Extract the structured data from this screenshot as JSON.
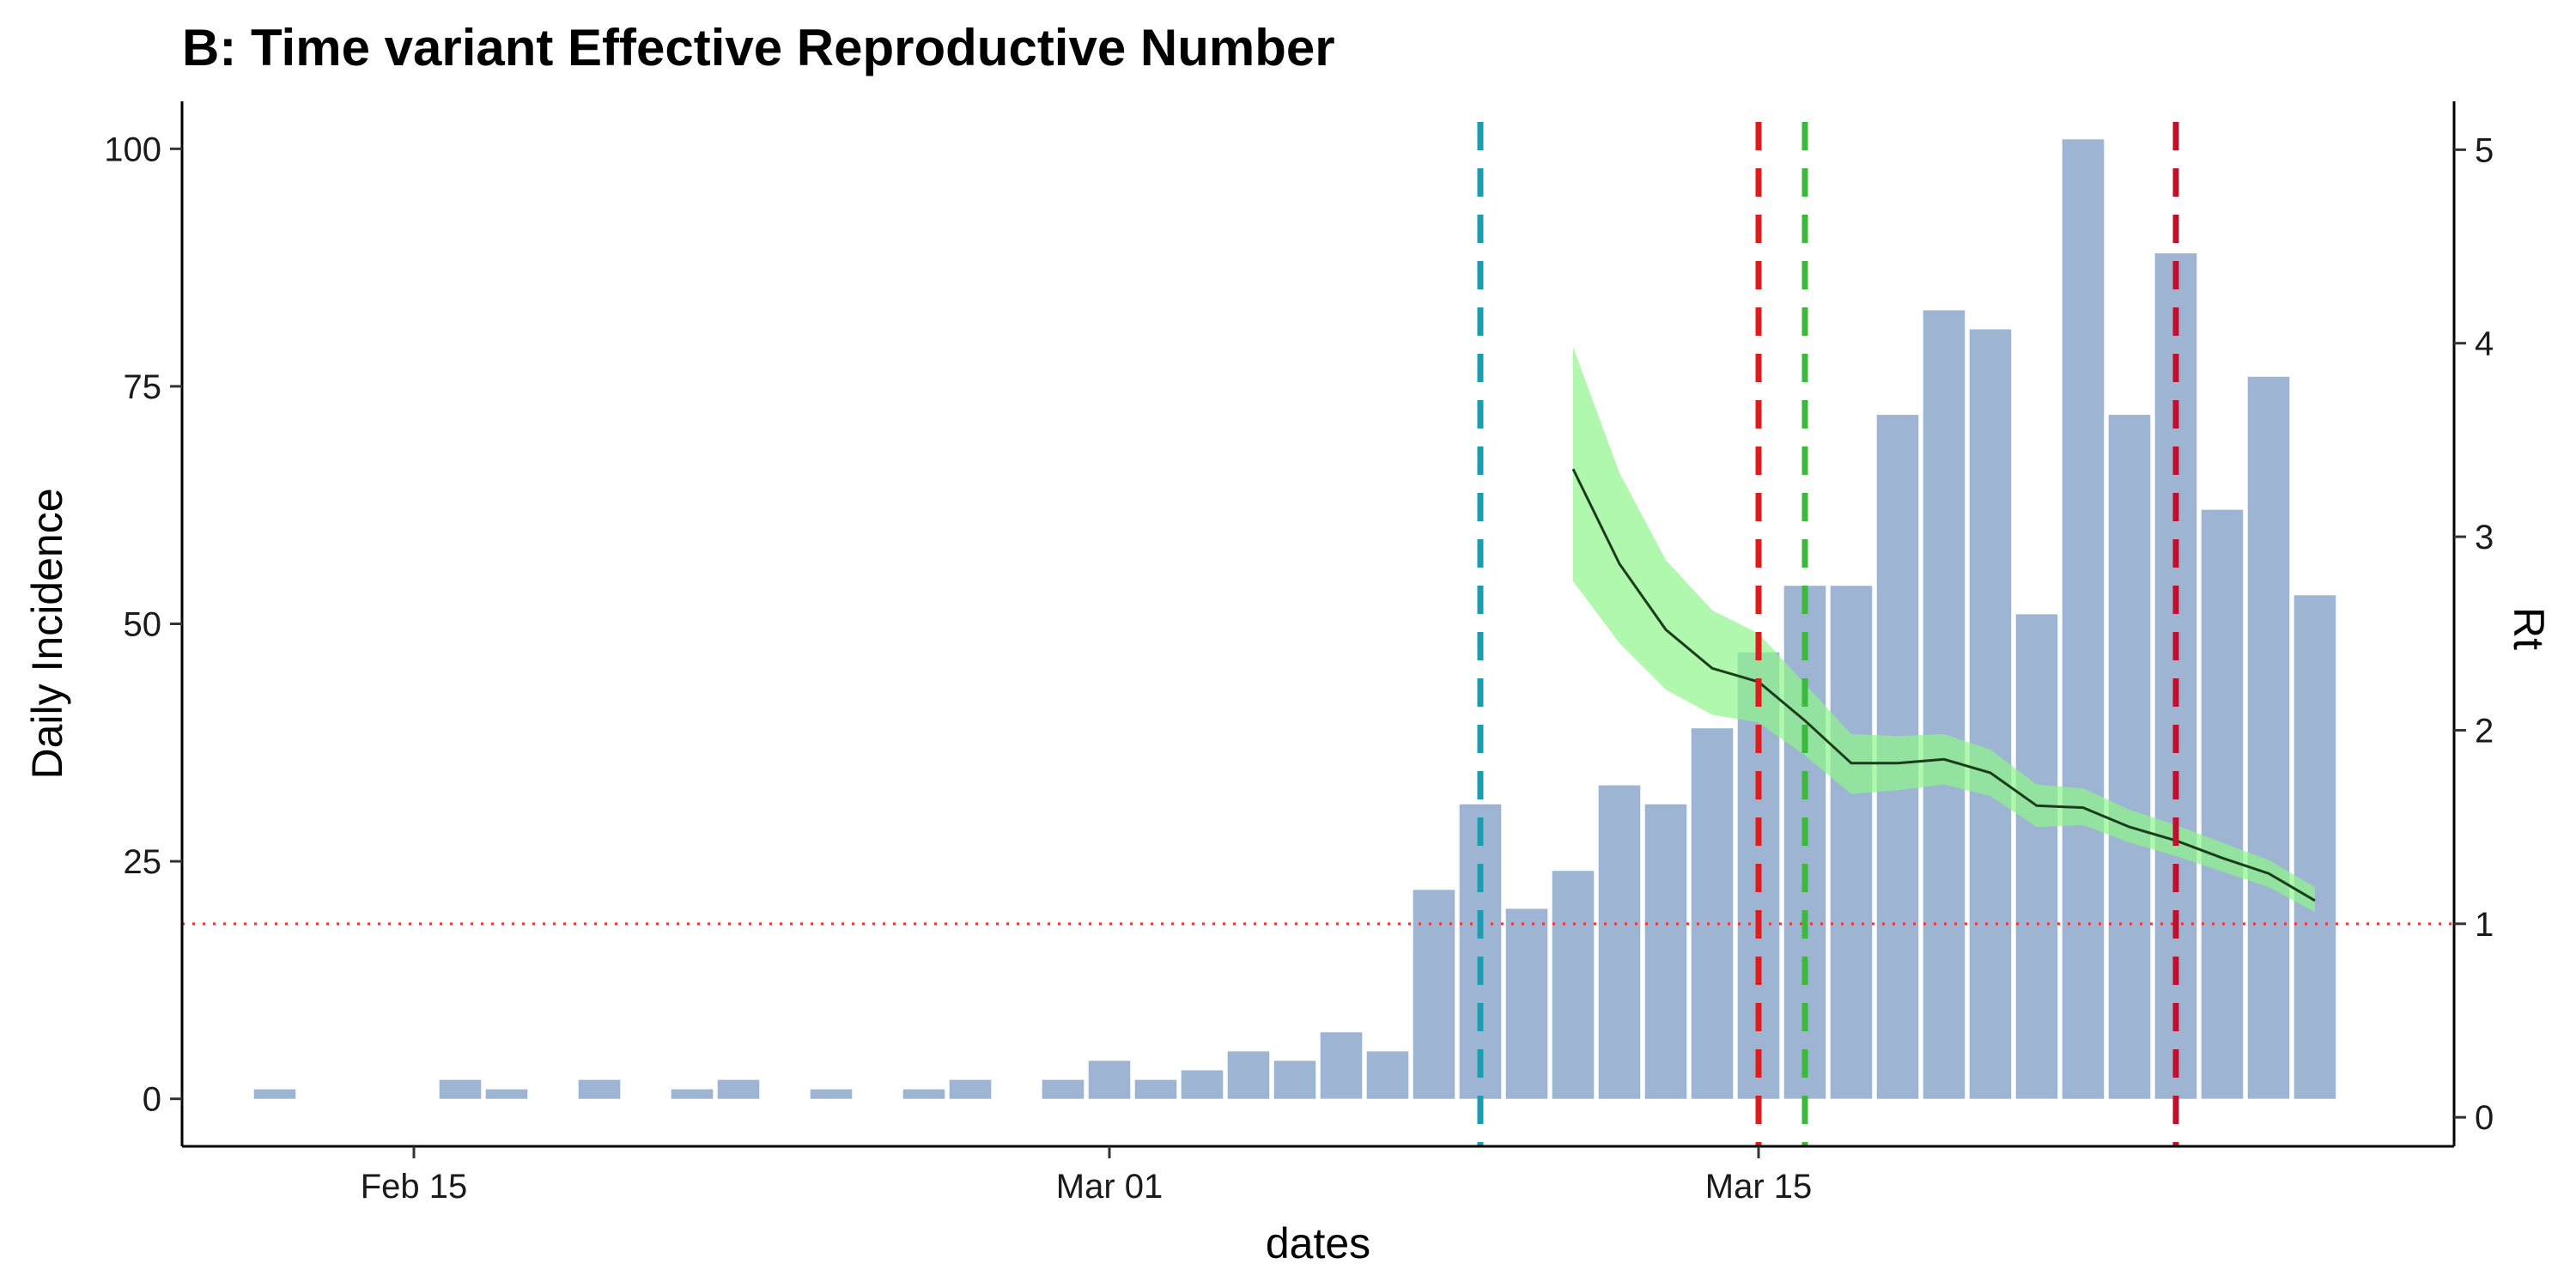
{
  "chart_data": {
    "type": "bar",
    "title": "B: Time variant Effective Reproductive Number",
    "xlabel": "dates",
    "ylabel": "Daily Incidence",
    "y2label": "Rt",
    "date_range": [
      "2020-02-10",
      "2020-03-30"
    ],
    "x_ticks": [
      {
        "date": "2020-02-15",
        "label": "Feb 15"
      },
      {
        "date": "2020-03-01",
        "label": "Mar 01"
      },
      {
        "date": "2020-03-15",
        "label": "Mar 15"
      }
    ],
    "ylim": [
      -5,
      105
    ],
    "y_ticks": [
      0,
      25,
      50,
      75,
      100
    ],
    "y2lim": [
      -0.15,
      5.25
    ],
    "y2_ticks": [
      0,
      1,
      2,
      3,
      4,
      5
    ],
    "grid": false,
    "bar_color": "#9db5d3",
    "bars": [
      {
        "date": "2020-02-12",
        "value": 1
      },
      {
        "date": "2020-02-16",
        "value": 2
      },
      {
        "date": "2020-02-17",
        "value": 1
      },
      {
        "date": "2020-02-19",
        "value": 2
      },
      {
        "date": "2020-02-21",
        "value": 1
      },
      {
        "date": "2020-02-22",
        "value": 2
      },
      {
        "date": "2020-02-24",
        "value": 1
      },
      {
        "date": "2020-02-26",
        "value": 1
      },
      {
        "date": "2020-02-27",
        "value": 2
      },
      {
        "date": "2020-02-29",
        "value": 2
      },
      {
        "date": "2020-03-01",
        "value": 4
      },
      {
        "date": "2020-03-02",
        "value": 2
      },
      {
        "date": "2020-03-03",
        "value": 3
      },
      {
        "date": "2020-03-04",
        "value": 5
      },
      {
        "date": "2020-03-05",
        "value": 4
      },
      {
        "date": "2020-03-06",
        "value": 7
      },
      {
        "date": "2020-03-07",
        "value": 5
      },
      {
        "date": "2020-03-08",
        "value": 22
      },
      {
        "date": "2020-03-09",
        "value": 31
      },
      {
        "date": "2020-03-10",
        "value": 20
      },
      {
        "date": "2020-03-11",
        "value": 24
      },
      {
        "date": "2020-03-12",
        "value": 33
      },
      {
        "date": "2020-03-13",
        "value": 31
      },
      {
        "date": "2020-03-14",
        "value": 39
      },
      {
        "date": "2020-03-15",
        "value": 47
      },
      {
        "date": "2020-03-16",
        "value": 54
      },
      {
        "date": "2020-03-17",
        "value": 54
      },
      {
        "date": "2020-03-18",
        "value": 72
      },
      {
        "date": "2020-03-19",
        "value": 83
      },
      {
        "date": "2020-03-20",
        "value": 81
      },
      {
        "date": "2020-03-21",
        "value": 51
      },
      {
        "date": "2020-03-22",
        "value": 101
      },
      {
        "date": "2020-03-23",
        "value": 72
      },
      {
        "date": "2020-03-24",
        "value": 89
      },
      {
        "date": "2020-03-25",
        "value": 62
      },
      {
        "date": "2020-03-26",
        "value": 76
      },
      {
        "date": "2020-03-27",
        "value": 53
      }
    ],
    "rt_series": {
      "line_color": "#1b3d1b",
      "band_color": "#8ef58a",
      "points": [
        {
          "date": "2020-03-11",
          "rt": 3.35,
          "lo": 2.77,
          "hi": 3.98
        },
        {
          "date": "2020-03-12",
          "rt": 2.86,
          "lo": 2.45,
          "hi": 3.33
        },
        {
          "date": "2020-03-13",
          "rt": 2.52,
          "lo": 2.21,
          "hi": 2.88
        },
        {
          "date": "2020-03-14",
          "rt": 2.32,
          "lo": 2.08,
          "hi": 2.62
        },
        {
          "date": "2020-03-15",
          "rt": 2.25,
          "lo": 2.04,
          "hi": 2.5
        },
        {
          "date": "2020-03-16",
          "rt": 2.05,
          "lo": 1.87,
          "hi": 2.24
        },
        {
          "date": "2020-03-17",
          "rt": 1.83,
          "lo": 1.67,
          "hi": 1.98
        },
        {
          "date": "2020-03-18",
          "rt": 1.83,
          "lo": 1.69,
          "hi": 1.97
        },
        {
          "date": "2020-03-19",
          "rt": 1.85,
          "lo": 1.72,
          "hi": 1.98
        },
        {
          "date": "2020-03-20",
          "rt": 1.78,
          "lo": 1.66,
          "hi": 1.9
        },
        {
          "date": "2020-03-21",
          "rt": 1.61,
          "lo": 1.5,
          "hi": 1.72
        },
        {
          "date": "2020-03-22",
          "rt": 1.6,
          "lo": 1.51,
          "hi": 1.7
        },
        {
          "date": "2020-03-23",
          "rt": 1.5,
          "lo": 1.42,
          "hi": 1.59
        },
        {
          "date": "2020-03-24",
          "rt": 1.43,
          "lo": 1.35,
          "hi": 1.51
        },
        {
          "date": "2020-03-25",
          "rt": 1.34,
          "lo": 1.27,
          "hi": 1.42
        },
        {
          "date": "2020-03-26",
          "rt": 1.26,
          "lo": 1.19,
          "hi": 1.33
        },
        {
          "date": "2020-03-27",
          "rt": 1.12,
          "lo": 1.06,
          "hi": 1.19
        }
      ]
    },
    "reference_line": {
      "rt": 1,
      "color": "#ee3333"
    },
    "vlines": [
      {
        "date": "2020-03-09",
        "color": "#1a9db0"
      },
      {
        "date": "2020-03-15",
        "color": "#e01b1b"
      },
      {
        "date": "2020-03-16",
        "color": "#3cb83c"
      },
      {
        "date": "2020-03-24",
        "color": "#c0102e"
      }
    ]
  }
}
